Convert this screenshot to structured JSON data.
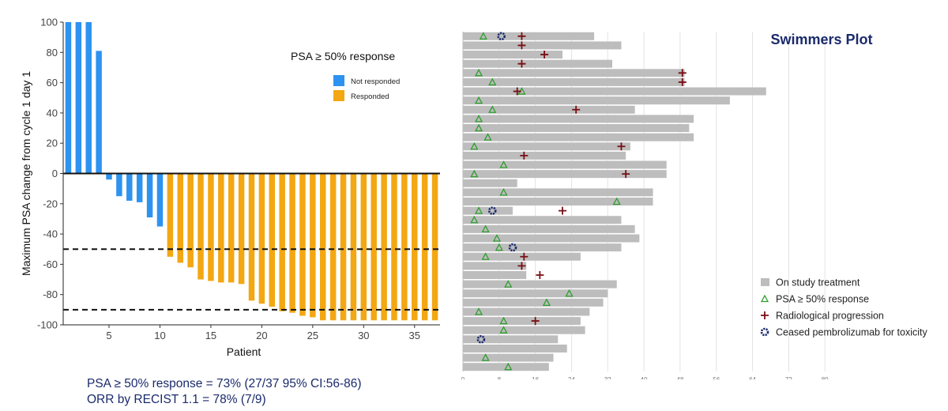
{
  "footer": {
    "line1": "PSA ≥ 50% response = 73% (27/37 95% CI:56-86)",
    "line2": "ORR by RECIST 1.1 = 78% (7/9)"
  },
  "chart_data": [
    {
      "type": "bar",
      "title": "",
      "xlabel": "Patient",
      "ylabel": "Maximum PSA change from cycle 1 day 1",
      "ylim": [
        -100,
        100
      ],
      "xlim": [
        0.5,
        37.5
      ],
      "yticks": [
        100,
        80,
        60,
        40,
        20,
        0,
        -20,
        -40,
        -60,
        -80,
        -100
      ],
      "xticks": [
        5,
        10,
        15,
        20,
        25,
        30,
        35
      ],
      "grid": false,
      "legend_title": "PSA ≥ 50% response",
      "legend_position": "top-right",
      "series": [
        {
          "name": "Not responded",
          "color": "#2e93f0",
          "x": [
            1,
            2,
            3,
            4,
            5,
            6,
            7,
            8,
            9,
            10
          ],
          "values": [
            100,
            100,
            100,
            81,
            -4,
            -15,
            -18,
            -19,
            -29,
            -35
          ]
        },
        {
          "name": "Responded",
          "color": "#f3a712",
          "x": [
            11,
            12,
            13,
            14,
            15,
            16,
            17,
            18,
            19,
            20,
            21,
            22,
            23,
            24,
            25,
            26,
            27,
            28,
            29,
            30,
            31,
            32,
            33,
            34,
            35,
            36,
            37
          ],
          "values": [
            -55,
            -59,
            -62,
            -70,
            -71,
            -72,
            -72,
            -73,
            -84,
            -86,
            -88,
            -91,
            -92,
            -94,
            -95,
            -97,
            -97,
            -97,
            -97,
            -97,
            -97,
            -97,
            -97,
            -97,
            -97,
            -97,
            -97
          ]
        }
      ],
      "reference_lines": [
        -50,
        -90
      ]
    },
    {
      "type": "bar",
      "title": "Swimmers Plot",
      "orientation": "horizontal",
      "xlim": [
        0,
        88
      ],
      "xticks": [
        0,
        8,
        16,
        24,
        32,
        40,
        48,
        56,
        64,
        72,
        80
      ],
      "grid": true,
      "legend_position": "bottom-right",
      "bar_color": "#bdbdbd",
      "series_names": {
        "bar": "On study treatment",
        "psa": "PSA ≥ 50% response",
        "prog": "Radiological progression",
        "tox": "Ceased pembrolizumab for toxicity"
      },
      "colors": {
        "psa": "#2e9e2e",
        "prog": "#7a0f14",
        "tox": "#1a2a6c"
      },
      "rows": [
        {
          "len": 29,
          "psa": 4.5,
          "prog": 13,
          "tox": 8.5
        },
        {
          "len": 35,
          "prog": 13
        },
        {
          "len": 22,
          "prog": 18
        },
        {
          "len": 33,
          "prog": 13
        },
        {
          "len": 49,
          "psa": 3.5,
          "prog": 48.5
        },
        {
          "len": 49,
          "psa": 6.5,
          "prog": 48.5
        },
        {
          "len": 67,
          "psa": 13,
          "prog": 12
        },
        {
          "len": 59,
          "psa": 3.5
        },
        {
          "len": 38,
          "psa": 6.5,
          "prog": 25
        },
        {
          "len": 51,
          "psa": 3.5
        },
        {
          "len": 50,
          "psa": 3.5
        },
        {
          "len": 51,
          "psa": 5.5
        },
        {
          "len": 37,
          "psa": 2.5,
          "prog": 35
        },
        {
          "len": 36,
          "prog": 13.5
        },
        {
          "len": 45,
          "psa": 9
        },
        {
          "len": 45,
          "psa": 2.5,
          "prog": 36
        },
        {
          "len": 12
        },
        {
          "len": 42,
          "psa": 9
        },
        {
          "len": 42,
          "psa": 34
        },
        {
          "len": 11,
          "psa": 3.5,
          "prog": 22,
          "tox": 6.5
        },
        {
          "len": 35,
          "psa": 2.5
        },
        {
          "len": 38,
          "psa": 5
        },
        {
          "len": 39,
          "psa": 7.5
        },
        {
          "len": 35,
          "psa": 8,
          "tox": 11
        },
        {
          "len": 26,
          "psa": 5,
          "prog": 13.5
        },
        {
          "len": 14,
          "prog": 13
        },
        {
          "len": 14,
          "prog": 17
        },
        {
          "len": 34,
          "psa": 10
        },
        {
          "len": 32,
          "psa": 23.5
        },
        {
          "len": 31,
          "psa": 18.5
        },
        {
          "len": 28,
          "psa": 3.5
        },
        {
          "len": 26,
          "psa": 9,
          "prog": 16
        },
        {
          "len": 27,
          "psa": 9
        },
        {
          "len": 21,
          "tox": 4
        },
        {
          "len": 23
        },
        {
          "len": 20,
          "psa": 5
        },
        {
          "len": 19,
          "psa": 10
        }
      ]
    }
  ]
}
